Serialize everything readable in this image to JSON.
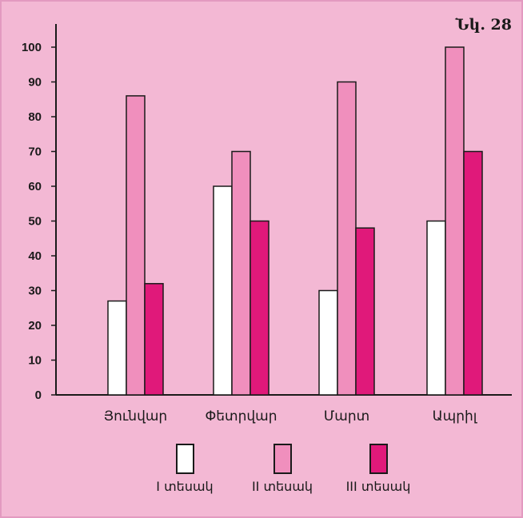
{
  "figure_label": "Նկ. 28",
  "colors": {
    "background": "#f3b8d4",
    "series": [
      "#ffffff",
      "#f08fbd",
      "#e0197a"
    ],
    "stroke": "#1a1a1a"
  },
  "chart_data": {
    "type": "bar",
    "categories": [
      "Յունվար",
      "Փետրվար",
      "Մարտ",
      "Ապրիլ"
    ],
    "series": [
      {
        "name": "I տեսակ",
        "values": [
          27,
          60,
          30,
          50
        ]
      },
      {
        "name": "II տեսակ",
        "values": [
          86,
          70,
          90,
          100
        ]
      },
      {
        "name": "III տեսակ",
        "values": [
          32,
          50,
          48,
          70
        ]
      }
    ],
    "yticks": [
      0,
      10,
      20,
      30,
      40,
      50,
      60,
      70,
      80,
      90,
      100
    ],
    "ylim": [
      0,
      100
    ],
    "grid": false,
    "legend_position": "bottom"
  }
}
